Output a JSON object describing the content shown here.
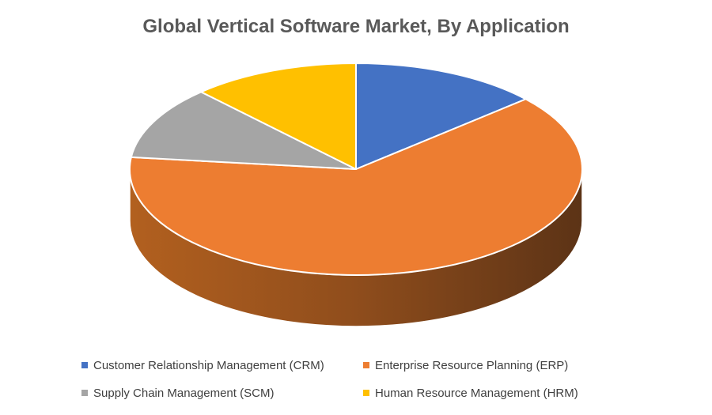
{
  "chart_data": {
    "type": "pie",
    "projection": "3d",
    "title": "Global Vertical Software Market, By Application",
    "series": [
      {
        "name": "Customer Relationship Management (CRM)",
        "value": 13.5,
        "color": "#4472C4"
      },
      {
        "name": "Enterprise Resource Planning (ERP)",
        "value": 63.3,
        "color": "#ED7D31"
      },
      {
        "name": "Supply Chain Management (SCM)",
        "value": 11.2,
        "color": "#A5A5A5"
      },
      {
        "name": "Human Resource Management (HRM)",
        "value": 12.0,
        "color": "#FFC000"
      }
    ],
    "values_unit": "percent (estimated from arc angles; no data labels shown)",
    "start_angle_deg": 0,
    "direction": "clockwise",
    "legend_position": "bottom",
    "legend_columns": 2,
    "grid": "off",
    "geometry": {
      "cx": 450,
      "cy": 214,
      "rx": 286,
      "ry": 134,
      "depth": 65
    },
    "wall_gradient": [
      "#B2601F",
      "#8F4D1C",
      "#5C3316"
    ],
    "outline_color": "#FFFFFF",
    "title_color": "#595959",
    "legend_text_color": "#404040",
    "background_color": "#FFFFFF"
  }
}
